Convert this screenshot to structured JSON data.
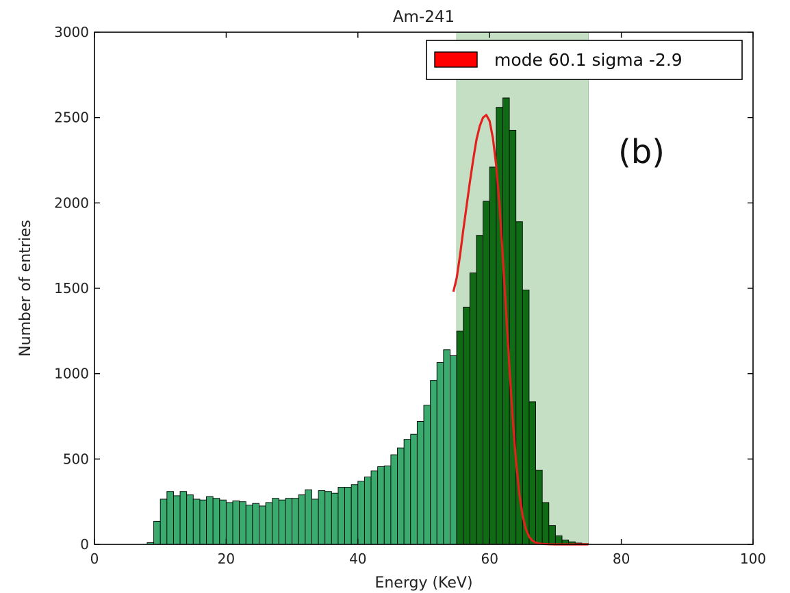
{
  "chart_data": {
    "type": "bar",
    "title": "Am-241",
    "xlabel": "Energy (KeV)",
    "ylabel": "Number of entries",
    "panel_label": "(b)",
    "xlim": [
      0,
      100
    ],
    "ylim": [
      0,
      3000
    ],
    "xticks": [
      0,
      20,
      40,
      60,
      80,
      100
    ],
    "yticks": [
      0,
      500,
      1000,
      1500,
      2000,
      2500,
      3000
    ],
    "grid": false,
    "legend": {
      "placement": "top-right",
      "entries": [
        {
          "label": "mode  60.1 sigma -2.9",
          "color": "#ff0000"
        }
      ]
    },
    "highlight_band": {
      "x_start": 55,
      "x_end": 75,
      "color": "#c5dfc5"
    },
    "histogram": {
      "bin_start": 8,
      "bin_width": 1,
      "color_outside_band": "#3aaa6e",
      "color_inside_band": "#0f6b14",
      "edge_color": "#000000",
      "values": [
        10,
        135,
        265,
        310,
        285,
        310,
        290,
        265,
        260,
        280,
        270,
        260,
        245,
        255,
        250,
        230,
        240,
        225,
        245,
        270,
        260,
        270,
        270,
        290,
        320,
        265,
        315,
        310,
        300,
        335,
        335,
        350,
        370,
        395,
        430,
        455,
        460,
        525,
        565,
        615,
        645,
        720,
        815,
        960,
        1065,
        1140,
        1105,
        1250,
        1390,
        1590,
        1810,
        2010,
        2210,
        2560,
        2615,
        2425,
        1890,
        1490,
        835,
        435,
        245,
        110,
        50,
        25,
        15,
        8,
        5
      ]
    },
    "fit_curve": {
      "color": "#e3211c",
      "x": [
        54.5,
        55.0,
        55.5,
        56.0,
        56.5,
        57.0,
        57.5,
        58.0,
        58.5,
        59.0,
        59.5,
        60.0,
        60.5,
        61.0,
        61.5,
        62.0,
        62.5,
        63.0,
        63.5,
        64.0,
        64.5,
        65.0,
        65.5,
        66.0,
        66.5,
        67.0,
        67.5,
        68.0,
        68.5,
        69.0,
        70.0,
        71.0,
        72.0,
        73.0,
        74.0,
        75.0
      ],
      "y": [
        1480,
        1560,
        1690,
        1840,
        1980,
        2120,
        2250,
        2370,
        2450,
        2500,
        2515,
        2480,
        2380,
        2220,
        1990,
        1690,
        1360,
        1040,
        740,
        490,
        300,
        170,
        90,
        45,
        22,
        10,
        5,
        3,
        2,
        1,
        0,
        0,
        0,
        0,
        0,
        0
      ]
    }
  }
}
